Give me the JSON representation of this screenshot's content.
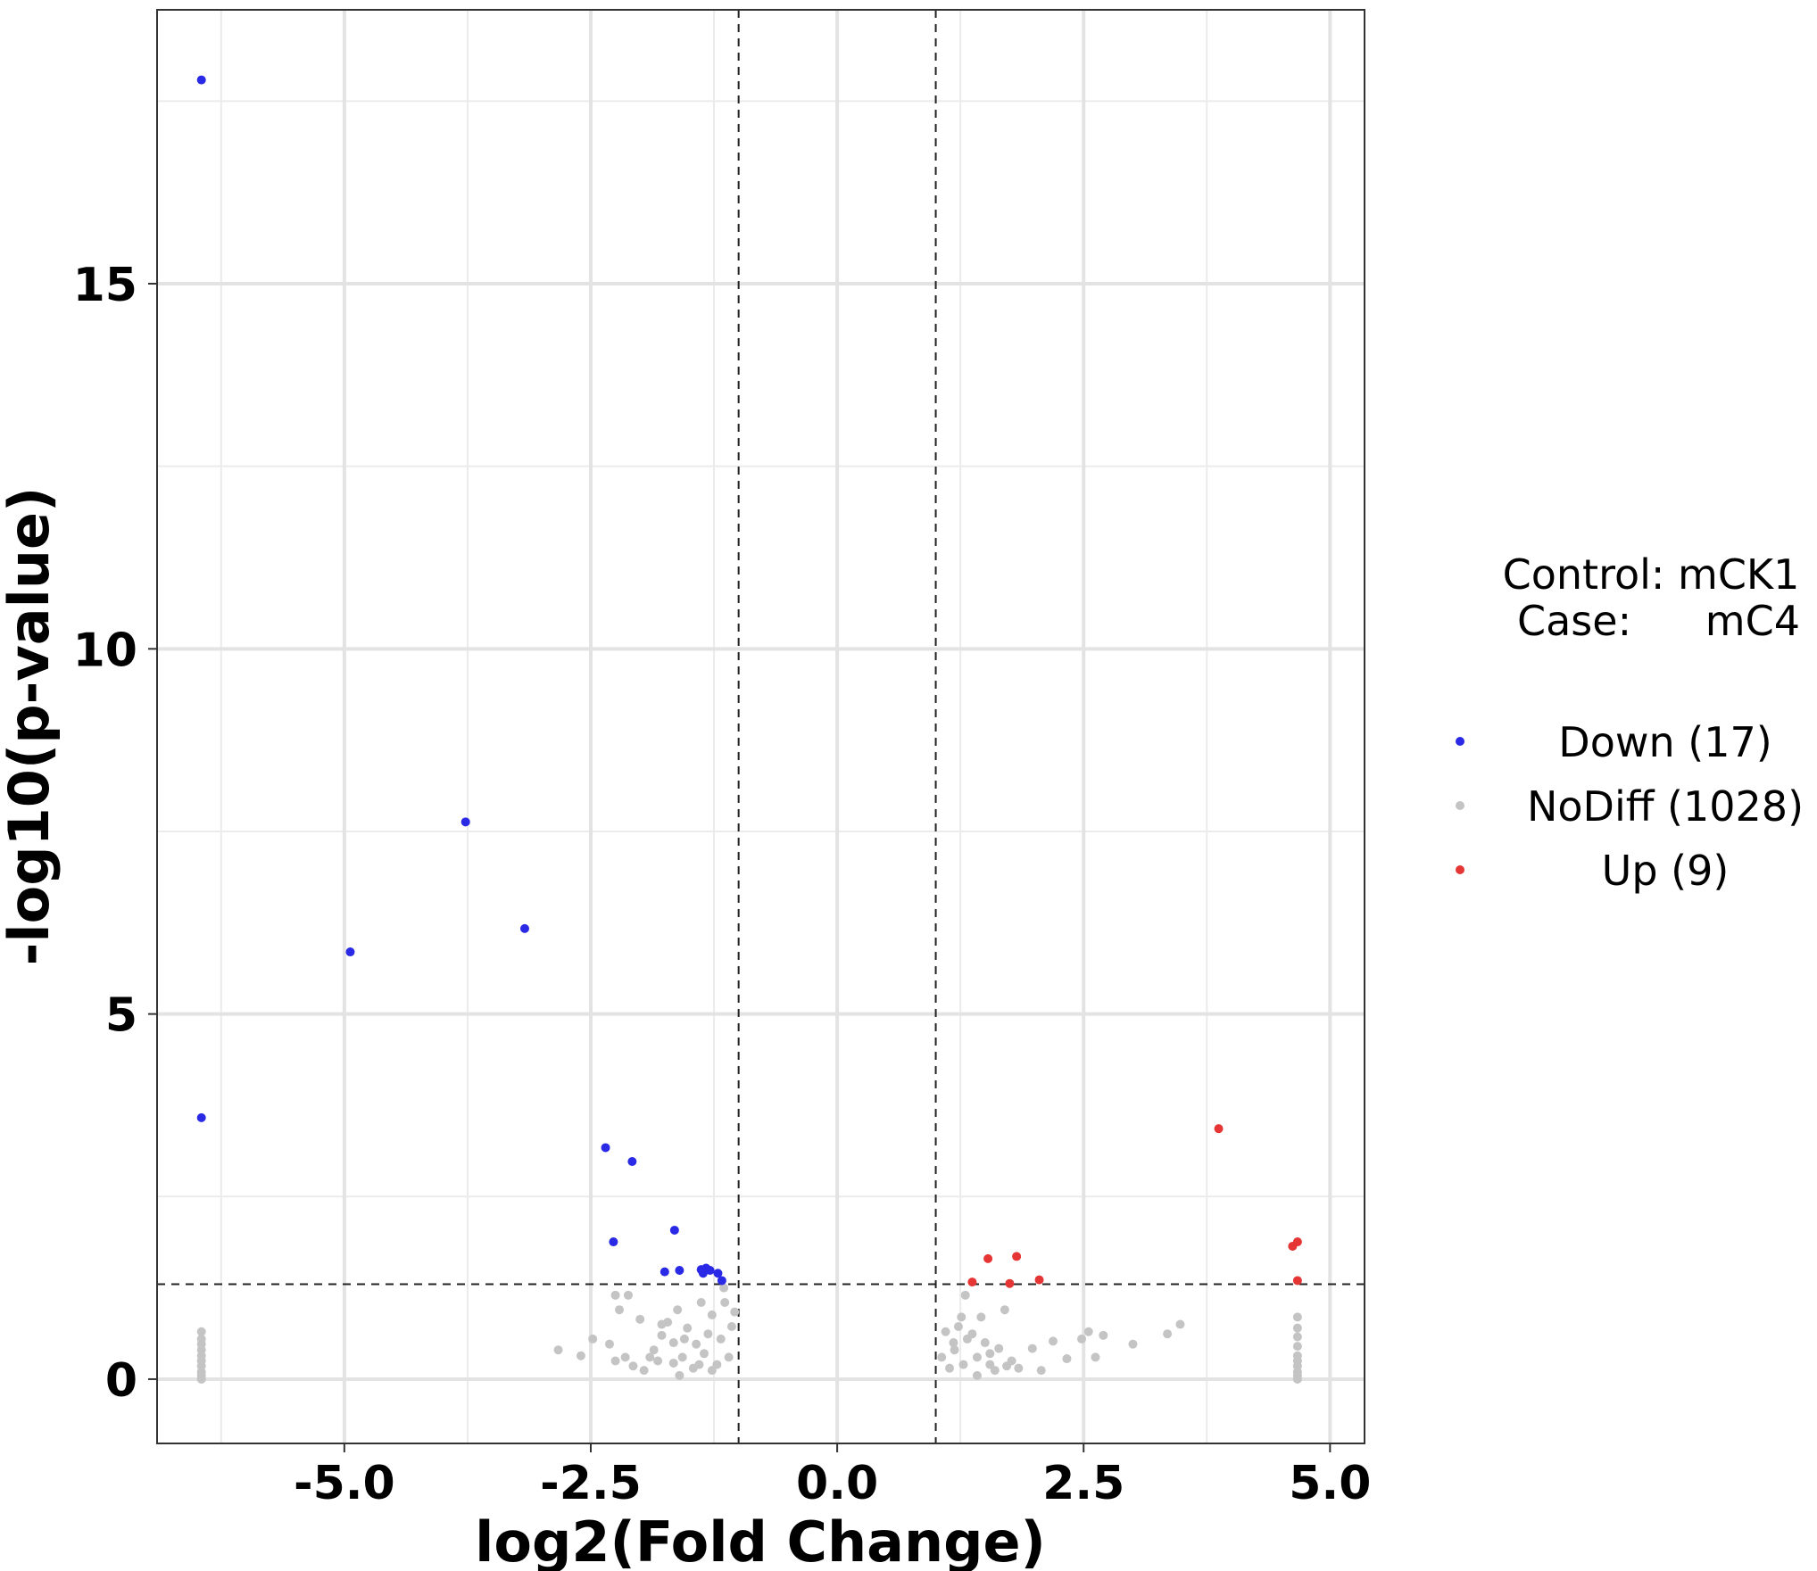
{
  "chart_data": {
    "type": "scatter",
    "title": "",
    "xlabel": "log2(Fold Change)",
    "ylabel": "-log10(p-value)",
    "xlim": [
      -6.9,
      5.35
    ],
    "ylim": [
      -0.88,
      18.75
    ],
    "x_ticks": [
      -5.0,
      -2.5,
      0.0,
      2.5,
      5.0
    ],
    "x_tick_labels": [
      "-5.0",
      "-2.5",
      "0.0",
      "2.5",
      "5.0"
    ],
    "y_ticks": [
      0,
      5,
      10,
      15
    ],
    "y_tick_labels": [
      "0",
      "5",
      "10",
      "15"
    ],
    "grid": true,
    "thresholds": {
      "vlines": [
        -1,
        1
      ],
      "hline": 1.3
    },
    "legend_position": "right",
    "legend_header": {
      "control": "Control: mCK1",
      "case_label": "Case:",
      "case_value": "mC4"
    },
    "series": [
      {
        "name": "Down (17)",
        "color": "#2a2ae6",
        "x": [
          -6.45,
          -6.45,
          -3.77,
          -4.94,
          -3.17,
          -2.35,
          -2.08,
          -1.65,
          -2.27,
          -1.38,
          -1.36,
          -1.33,
          -1.29,
          -1.21,
          -1.17,
          -1.6,
          -1.75
        ],
        "y": [
          17.79,
          3.58,
          7.63,
          5.85,
          6.17,
          3.17,
          2.98,
          2.04,
          1.88,
          1.5,
          1.45,
          1.52,
          1.49,
          1.45,
          1.35,
          1.49,
          1.47
        ]
      },
      {
        "name": "Up (9)",
        "color": "#e53535",
        "x": [
          3.87,
          4.62,
          4.67,
          1.53,
          1.82,
          1.37,
          1.75,
          2.05,
          4.67
        ],
        "y": [
          3.43,
          1.82,
          1.88,
          1.65,
          1.68,
          1.33,
          1.31,
          1.36,
          1.35
        ]
      },
      {
        "name": "NoDiff (1028)",
        "color": "#c4c4c4",
        "x": [
          -2.83,
          -2.6,
          -2.48,
          -2.31,
          -2.25,
          -2.21,
          -2.15,
          -2.07,
          -2.0,
          -1.96,
          -1.86,
          -1.82,
          -1.78,
          -1.72,
          -1.66,
          -1.6,
          -1.57,
          -1.52,
          -1.46,
          -1.43,
          -1.38,
          -1.35,
          -1.31,
          -1.27,
          -1.22,
          -1.18,
          -1.14,
          -1.1,
          -1.07,
          -1.04,
          -2.25,
          -1.78,
          -1.62,
          -1.27,
          -1.55,
          -1.4,
          -1.15,
          -1.9,
          -2.12,
          -1.66,
          1.06,
          1.1,
          1.14,
          1.19,
          1.23,
          1.28,
          1.32,
          1.37,
          1.42,
          1.46,
          1.5,
          1.55,
          1.6,
          1.64,
          1.7,
          1.77,
          1.84,
          1.98,
          2.07,
          2.19,
          2.33,
          2.48,
          2.62,
          2.7,
          3.0,
          3.35,
          3.48,
          1.18,
          1.42,
          1.72,
          2.55,
          1.3,
          1.55,
          1.26,
          -6.45,
          -6.45,
          -6.45,
          -6.45,
          -6.45,
          -6.45,
          -6.45,
          -6.45,
          -6.45,
          -6.45,
          4.67,
          4.67,
          4.67,
          4.67,
          4.67,
          4.67,
          4.67,
          4.67,
          4.67,
          4.67
        ],
        "y": [
          0.4,
          0.32,
          0.55,
          0.48,
          0.25,
          0.95,
          0.3,
          0.18,
          0.82,
          0.12,
          0.4,
          0.25,
          0.6,
          0.78,
          0.22,
          0.05,
          0.3,
          0.7,
          0.15,
          0.48,
          1.05,
          0.35,
          0.62,
          0.88,
          0.2,
          0.55,
          1.05,
          0.3,
          0.72,
          0.92,
          1.15,
          0.75,
          0.95,
          0.12,
          0.55,
          0.2,
          1.25,
          0.3,
          1.15,
          0.5,
          0.3,
          0.65,
          0.15,
          0.4,
          0.72,
          0.2,
          0.55,
          0.62,
          0.3,
          0.85,
          0.5,
          0.2,
          0.12,
          0.42,
          0.95,
          0.25,
          0.15,
          0.42,
          0.12,
          0.52,
          0.28,
          0.55,
          0.3,
          0.6,
          0.48,
          0.62,
          0.75,
          0.5,
          0.05,
          0.18,
          0.65,
          1.15,
          0.35,
          0.85,
          0.0,
          0.05,
          0.1,
          0.18,
          0.25,
          0.32,
          0.4,
          0.48,
          0.55,
          0.65,
          0.0,
          0.05,
          0.1,
          0.18,
          0.25,
          0.32,
          0.45,
          0.58,
          0.7,
          0.85
        ]
      }
    ]
  }
}
